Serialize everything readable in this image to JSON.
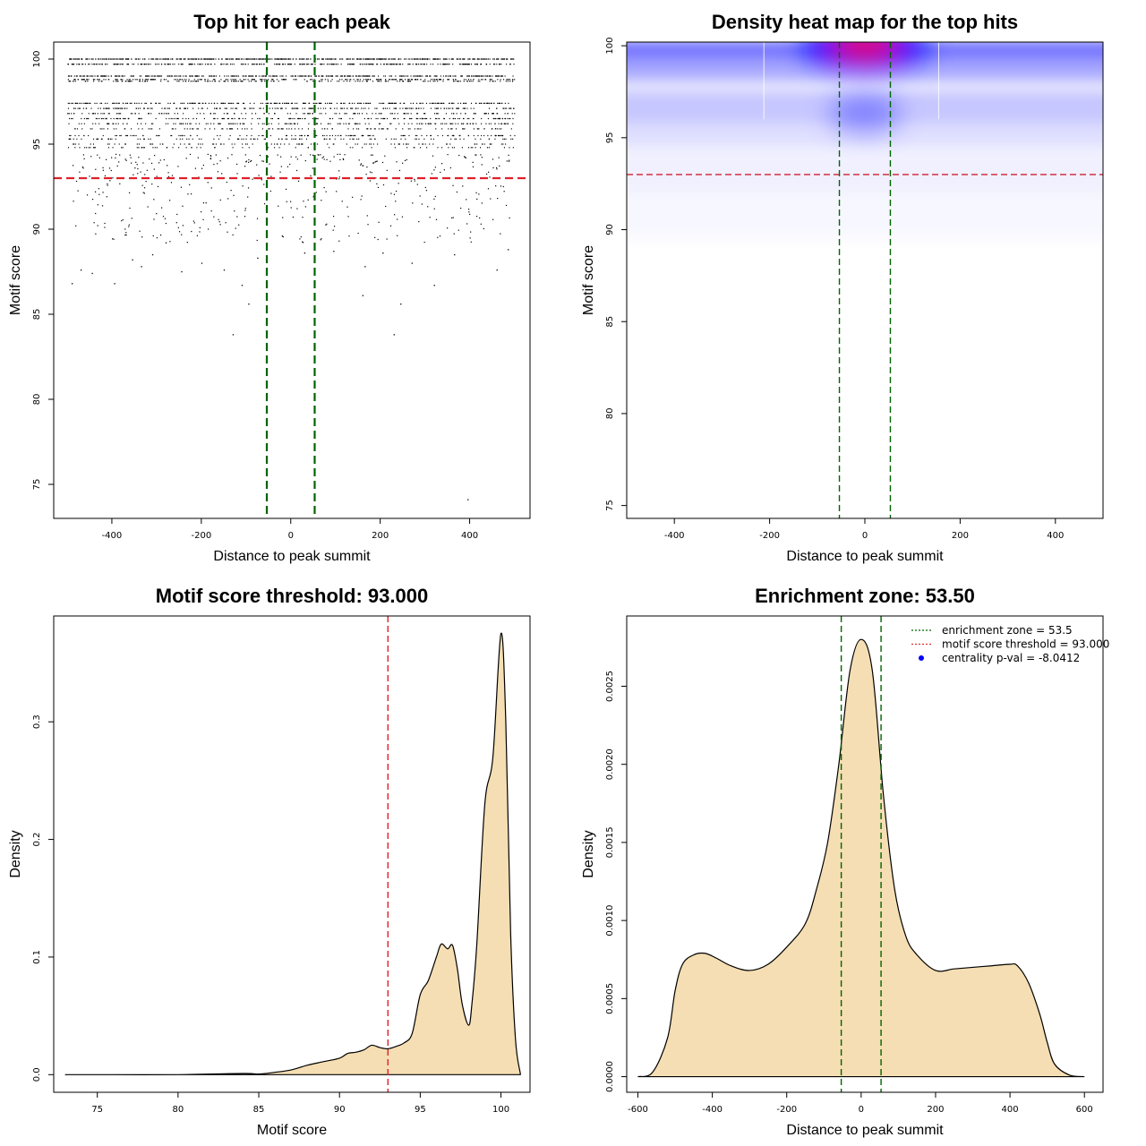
{
  "chart_data": [
    {
      "type": "scatter",
      "title": "Top hit for each peak",
      "xlabel": "Distance to peak summit",
      "ylabel": "Motif score",
      "xlim": [
        -530,
        535
      ],
      "ylim": [
        73,
        101
      ],
      "xticks": [
        -400,
        -200,
        0,
        200,
        400
      ],
      "yticks": [
        75,
        80,
        85,
        90,
        95,
        100
      ],
      "threshold_y": 93.0,
      "zone_x": [
        -53.5,
        53.5
      ],
      "score_rows": [
        {
          "y": 100.0,
          "count": 520
        },
        {
          "y": 99.7,
          "count": 300
        },
        {
          "y": 99.0,
          "count": 380
        },
        {
          "y": 98.8,
          "count": 240
        },
        {
          "y": 98.7,
          "count": 160
        },
        {
          "y": 97.4,
          "count": 260
        },
        {
          "y": 97.1,
          "count": 220
        },
        {
          "y": 96.8,
          "count": 150
        },
        {
          "y": 96.5,
          "count": 180
        },
        {
          "y": 96.2,
          "count": 160
        },
        {
          "y": 95.9,
          "count": 120
        },
        {
          "y": 95.5,
          "count": 130
        },
        {
          "y": 95.3,
          "count": 110
        },
        {
          "y": 95.0,
          "count": 100
        },
        {
          "y": 94.8,
          "count": 70
        }
      ],
      "sparse_points": [
        {
          "x": -490,
          "y": 86.8
        },
        {
          "x": -470,
          "y": 87.6
        },
        {
          "x": -445,
          "y": 87.4
        },
        {
          "x": -395,
          "y": 86.8
        },
        {
          "x": -355,
          "y": 88.2
        },
        {
          "x": -335,
          "y": 87.8
        },
        {
          "x": -310,
          "y": 88.5
        },
        {
          "x": -280,
          "y": 89.2
        },
        {
          "x": -245,
          "y": 87.5
        },
        {
          "x": -200,
          "y": 88.0
        },
        {
          "x": -150,
          "y": 87.6
        },
        {
          "x": -130,
          "y": 83.8
        },
        {
          "x": -110,
          "y": 86.7
        },
        {
          "x": -95,
          "y": 85.6
        },
        {
          "x": -75,
          "y": 88.3
        },
        {
          "x": 30,
          "y": 88.6
        },
        {
          "x": 95,
          "y": 88.7
        },
        {
          "x": 165,
          "y": 87.8
        },
        {
          "x": 205,
          "y": 88.6
        },
        {
          "x": 230,
          "y": 83.8
        },
        {
          "x": 245,
          "y": 85.6
        },
        {
          "x": 320,
          "y": 86.7
        },
        {
          "x": 365,
          "y": 88.5
        },
        {
          "x": 395,
          "y": 74.1
        },
        {
          "x": 460,
          "y": 87.6
        },
        {
          "x": 485,
          "y": 88.8
        },
        {
          "x": 160,
          "y": 86.1
        },
        {
          "x": -20,
          "y": 89.6
        },
        {
          "x": 270,
          "y": 88.0
        }
      ]
    },
    {
      "type": "heatmap",
      "title": "Density heat map for the top hits",
      "xlabel": "Distance to peak summit",
      "ylabel": "Motif score",
      "xlim": [
        -500,
        500
      ],
      "ylim": [
        74.3,
        100.2
      ],
      "xticks": [
        -400,
        -200,
        0,
        200,
        400
      ],
      "yticks": [
        75,
        80,
        85,
        90,
        95,
        100
      ],
      "threshold_y": 93.0,
      "zone_x": [
        -53.5,
        53.5
      ],
      "colors": {
        "low": "#ffffff",
        "mid": "#0000ff",
        "high": "#ff0000"
      }
    },
    {
      "type": "area",
      "title": "Motif score threshold: 93.000",
      "xlabel": "Motif score",
      "ylabel": "Density",
      "xlim": [
        72.3,
        101.8
      ],
      "ylim": [
        -0.015,
        0.39
      ],
      "xticks": [
        75,
        80,
        85,
        90,
        95,
        100
      ],
      "yticks": [
        0.0,
        0.1,
        0.2,
        0.3
      ],
      "ytick_labels": [
        "0.0",
        "0.1",
        "0.2",
        "0.3"
      ],
      "threshold_x": 93.0,
      "x": [
        73,
        75,
        80,
        84,
        85,
        86,
        87,
        88,
        89,
        90,
        90.5,
        91,
        91.5,
        92,
        92.5,
        93,
        93.5,
        94,
        94.5,
        95,
        95.5,
        96,
        96.3,
        96.7,
        97,
        97.3,
        97.6,
        98,
        98.2,
        98.5,
        99,
        99.5,
        100,
        100.3,
        100.6,
        100.9,
        101.2
      ],
      "y": [
        0,
        0,
        0,
        0.001,
        0.0005,
        0.002,
        0.004,
        0.008,
        0.011,
        0.014,
        0.018,
        0.019,
        0.021,
        0.025,
        0.023,
        0.022,
        0.024,
        0.027,
        0.035,
        0.068,
        0.08,
        0.1,
        0.111,
        0.107,
        0.11,
        0.09,
        0.06,
        0.042,
        0.06,
        0.11,
        0.23,
        0.27,
        0.375,
        0.3,
        0.12,
        0.03,
        0.001
      ]
    },
    {
      "type": "area",
      "title": "Enrichment zone: 53.50",
      "xlabel": "Distance to peak summit",
      "ylabel": "Density",
      "xlim": [
        -630,
        650
      ],
      "ylim": [
        -0.0001,
        0.00295
      ],
      "xticks": [
        -600,
        -400,
        -200,
        0,
        200,
        400,
        600
      ],
      "yticks": [
        0.0,
        0.0005,
        0.001,
        0.0015,
        0.002,
        0.0025
      ],
      "ytick_labels": [
        "0.0000",
        "0.0005",
        "0.0010",
        "0.0015",
        "0.0020",
        "0.0025"
      ],
      "zone_x": [
        -53.5,
        53.5
      ],
      "x": [
        -600,
        -560,
        -520,
        -500,
        -480,
        -450,
        -420,
        -390,
        -350,
        -300,
        -250,
        -200,
        -150,
        -120,
        -90,
        -60,
        -30,
        0,
        30,
        60,
        90,
        120,
        150,
        200,
        250,
        300,
        350,
        400,
        420,
        450,
        480,
        500,
        520,
        560,
        600
      ],
      "y": [
        0,
        3e-05,
        0.00025,
        0.00055,
        0.00072,
        0.00078,
        0.00079,
        0.00076,
        0.00071,
        0.00068,
        0.00072,
        0.00083,
        0.00098,
        0.0012,
        0.0015,
        0.002,
        0.0026,
        0.0028,
        0.0026,
        0.0018,
        0.0012,
        0.0009,
        0.00078,
        0.00068,
        0.00069,
        0.0007,
        0.00071,
        0.00072,
        0.00071,
        0.0006,
        0.0004,
        0.00022,
        8e-05,
        1e-05,
        0
      ],
      "legend": {
        "position": "top-right",
        "entries": [
          {
            "label": "enrichment zone = 53.5",
            "style": "dotted",
            "color": "#006400"
          },
          {
            "label": "motif score threshold = 93.000",
            "style": "dotted",
            "color": "#e03030"
          },
          {
            "label": "centrality p-val = -8.0412",
            "style": "point",
            "color": "#0000ff"
          }
        ]
      }
    }
  ]
}
